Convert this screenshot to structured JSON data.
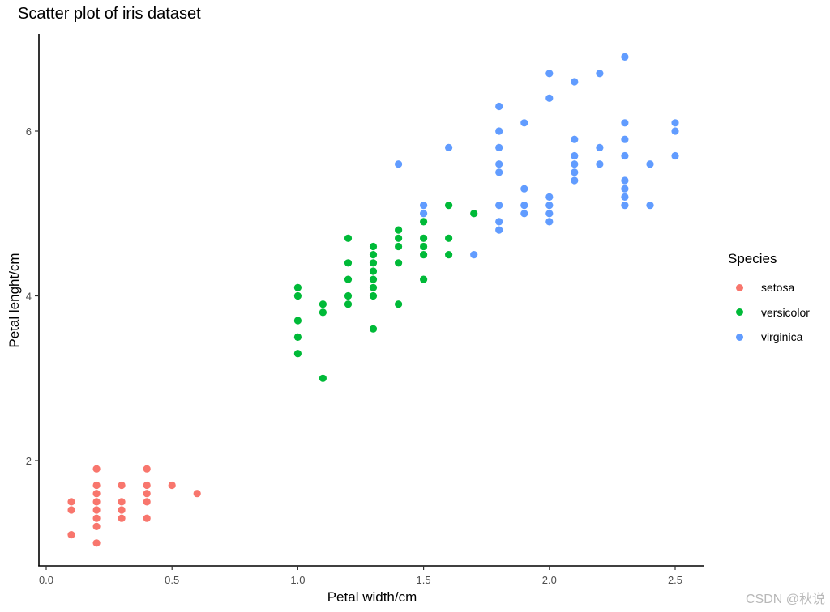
{
  "chart_data": {
    "type": "scatter",
    "title": "Scatter plot of iris dataset",
    "xlabel": "Petal width/cm",
    "ylabel": "Petal lenght/cm",
    "xlim": [
      -0.03,
      2.62
    ],
    "ylim": [
      0.7,
      7.1
    ],
    "x_ticks": [
      0.0,
      0.5,
      1.0,
      1.5,
      2.0,
      2.5
    ],
    "x_tick_labels": [
      "0.0",
      "0.5",
      "1.0",
      "1.5",
      "2.0",
      "2.5"
    ],
    "y_ticks": [
      2,
      4,
      6
    ],
    "y_tick_labels": [
      "2",
      "4",
      "6"
    ],
    "grid": false,
    "legend": {
      "title": "Species",
      "position": "right"
    },
    "series": [
      {
        "name": "setosa",
        "color": "#F8766D",
        "points": [
          [
            0.1,
            1.5
          ],
          [
            0.1,
            1.4
          ],
          [
            0.1,
            1.1
          ],
          [
            0.2,
            1.9
          ],
          [
            0.2,
            1.7
          ],
          [
            0.2,
            1.6
          ],
          [
            0.2,
            1.5
          ],
          [
            0.2,
            1.4
          ],
          [
            0.2,
            1.3
          ],
          [
            0.2,
            1.2
          ],
          [
            0.2,
            1.0
          ],
          [
            0.3,
            1.7
          ],
          [
            0.3,
            1.5
          ],
          [
            0.3,
            1.4
          ],
          [
            0.3,
            1.3
          ],
          [
            0.4,
            1.9
          ],
          [
            0.4,
            1.7
          ],
          [
            0.4,
            1.6
          ],
          [
            0.4,
            1.5
          ],
          [
            0.4,
            1.3
          ],
          [
            0.5,
            1.7
          ],
          [
            0.6,
            1.6
          ]
        ]
      },
      {
        "name": "versicolor",
        "color": "#00BA38",
        "points": [
          [
            1.0,
            4.1
          ],
          [
            1.0,
            4.0
          ],
          [
            1.0,
            3.7
          ],
          [
            1.0,
            3.5
          ],
          [
            1.0,
            3.3
          ],
          [
            1.1,
            3.9
          ],
          [
            1.1,
            3.8
          ],
          [
            1.1,
            3.0
          ],
          [
            1.2,
            4.7
          ],
          [
            1.2,
            4.4
          ],
          [
            1.2,
            4.2
          ],
          [
            1.2,
            4.0
          ],
          [
            1.2,
            3.9
          ],
          [
            1.3,
            4.6
          ],
          [
            1.3,
            4.5
          ],
          [
            1.3,
            4.4
          ],
          [
            1.3,
            4.3
          ],
          [
            1.3,
            4.2
          ],
          [
            1.3,
            4.1
          ],
          [
            1.3,
            4.0
          ],
          [
            1.3,
            3.6
          ],
          [
            1.4,
            4.8
          ],
          [
            1.4,
            4.7
          ],
          [
            1.4,
            4.6
          ],
          [
            1.4,
            4.4
          ],
          [
            1.4,
            3.9
          ],
          [
            1.5,
            4.9
          ],
          [
            1.5,
            4.7
          ],
          [
            1.5,
            4.6
          ],
          [
            1.5,
            4.5
          ],
          [
            1.5,
            4.2
          ],
          [
            1.6,
            5.1
          ],
          [
            1.6,
            4.7
          ],
          [
            1.6,
            4.5
          ],
          [
            1.7,
            5.0
          ]
        ]
      },
      {
        "name": "virginica",
        "color": "#619CFF",
        "points": [
          [
            1.4,
            5.6
          ],
          [
            1.5,
            5.1
          ],
          [
            1.5,
            5.0
          ],
          [
            1.6,
            5.8
          ],
          [
            1.7,
            4.5
          ],
          [
            1.8,
            6.3
          ],
          [
            1.8,
            6.0
          ],
          [
            1.8,
            5.8
          ],
          [
            1.8,
            5.6
          ],
          [
            1.8,
            5.5
          ],
          [
            1.8,
            5.1
          ],
          [
            1.8,
            4.9
          ],
          [
            1.8,
            4.8
          ],
          [
            1.9,
            6.1
          ],
          [
            1.9,
            5.3
          ],
          [
            1.9,
            5.1
          ],
          [
            1.9,
            5.0
          ],
          [
            2.0,
            6.7
          ],
          [
            2.0,
            6.4
          ],
          [
            2.0,
            5.2
          ],
          [
            2.0,
            5.1
          ],
          [
            2.0,
            5.0
          ],
          [
            2.0,
            4.9
          ],
          [
            2.1,
            6.6
          ],
          [
            2.1,
            5.9
          ],
          [
            2.1,
            5.7
          ],
          [
            2.1,
            5.6
          ],
          [
            2.1,
            5.5
          ],
          [
            2.1,
            5.4
          ],
          [
            2.2,
            6.7
          ],
          [
            2.2,
            5.8
          ],
          [
            2.2,
            5.6
          ],
          [
            2.3,
            6.9
          ],
          [
            2.3,
            6.1
          ],
          [
            2.3,
            5.9
          ],
          [
            2.3,
            5.7
          ],
          [
            2.3,
            5.4
          ],
          [
            2.3,
            5.3
          ],
          [
            2.3,
            5.2
          ],
          [
            2.3,
            5.1
          ],
          [
            2.4,
            5.6
          ],
          [
            2.4,
            5.1
          ],
          [
            2.5,
            6.1
          ],
          [
            2.5,
            6.0
          ],
          [
            2.5,
            5.7
          ]
        ]
      }
    ]
  },
  "watermark": "CSDN @秋说"
}
